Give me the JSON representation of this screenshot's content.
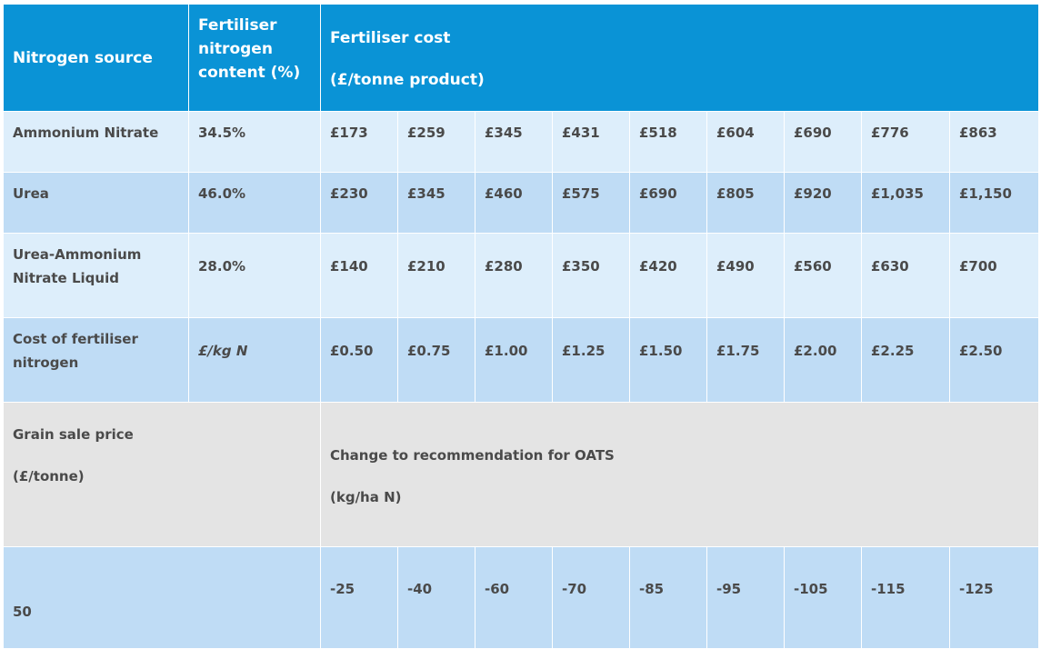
{
  "header": {
    "col0": "Nitrogen source",
    "col1": "Fertiliser nitrogen content (%)",
    "cost_line1": "Fertiliser cost",
    "cost_line2": "(£/tonne product)"
  },
  "rows": [
    {
      "name": "Ammonium Nitrate",
      "content": "34.5%",
      "values": [
        "£173",
        "£259",
        "£345",
        "£431",
        "£518",
        "£604",
        "£690",
        "£776",
        "£863"
      ]
    },
    {
      "name": "Urea",
      "content": "46.0%",
      "values": [
        "£230",
        "£345",
        "£460",
        "£575",
        "£690",
        "£805",
        "£920",
        "£1,035",
        "£1,150"
      ]
    },
    {
      "name": "Urea-Ammonium Nitrate Liquid",
      "content": "28.0%",
      "values": [
        "£140",
        "£210",
        "£280",
        "£350",
        "£420",
        "£490",
        "£560",
        "£630",
        "£700"
      ]
    }
  ],
  "cost_row": {
    "name": "Cost of fertiliser nitrogen",
    "unit": "£/kg N",
    "values": [
      "£0.50",
      "£0.75",
      "£1.00",
      "£1.25",
      "£1.50",
      "£1.75",
      "£2.00",
      "£2.25",
      "£2.50"
    ]
  },
  "grain_row": {
    "label_line1": "Grain sale price",
    "label_line2": "(£/tonne)",
    "span_line1": "Change to recommendation for OATS",
    "span_line2": "(kg/ha N)"
  },
  "price_row": {
    "price": "50",
    "values": [
      "-25",
      "-40",
      "-60",
      "-70",
      "-85",
      "-95",
      "-105",
      "-115",
      "-125"
    ]
  }
}
